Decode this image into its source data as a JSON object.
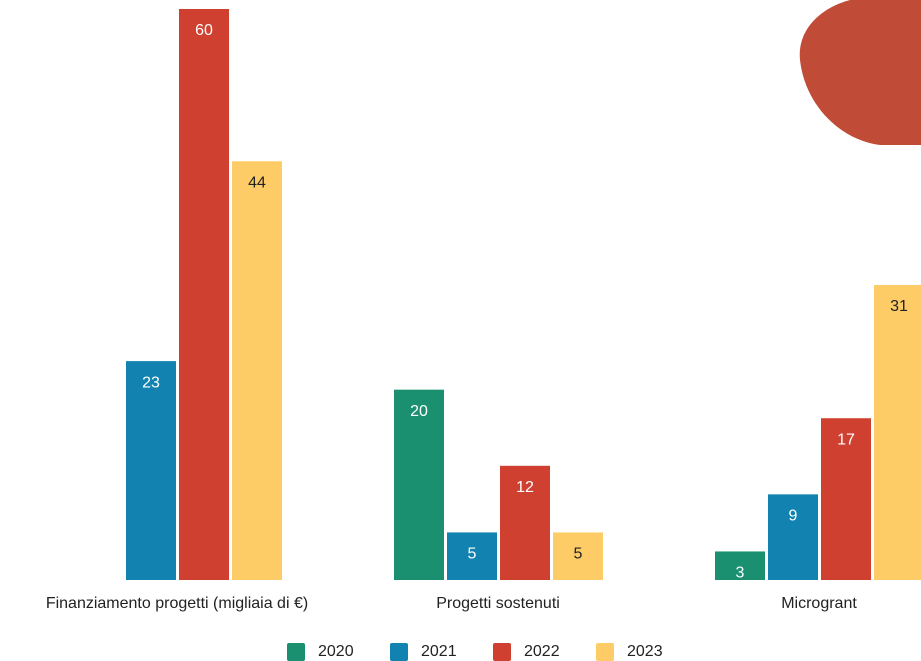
{
  "chart_data": {
    "type": "bar",
    "categories": [
      "Finanziamento progetti (migliaia di €)",
      "Progetti sostenuti",
      "Microgrant"
    ],
    "series": [
      {
        "name": "2020",
        "color": "#1a9070",
        "values": [
          null,
          20,
          3
        ]
      },
      {
        "name": "2021",
        "color": "#1283b0",
        "values": [
          23,
          5,
          9
        ]
      },
      {
        "name": "2022",
        "color": "#cf4030",
        "values": [
          60,
          12,
          17
        ]
      },
      {
        "name": "2023",
        "color": "#fdcc66",
        "values": [
          44,
          5,
          31
        ]
      }
    ],
    "legend": "bottom"
  }
}
